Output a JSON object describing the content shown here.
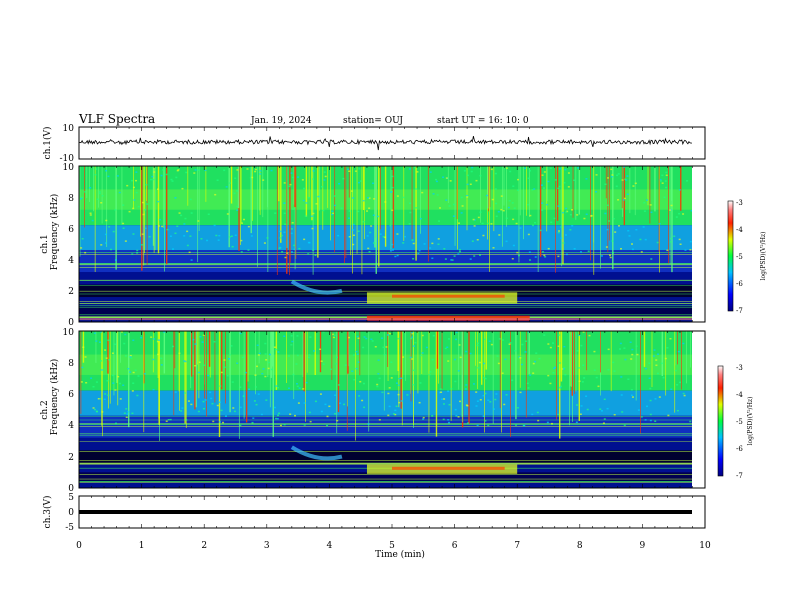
{
  "header": {
    "title": "VLF Spectra",
    "date": "Jan. 19, 2024",
    "station": "station= OUJ",
    "start": "start  UT =  16: 10: 0"
  },
  "chart_data": [
    {
      "type": "line",
      "panel": "ch1-waveform",
      "ylabel": "ch.1(V)",
      "ylim": [
        -10,
        10
      ],
      "yticks": [
        "10",
        "-10"
      ],
      "xlim": [
        0,
        10
      ],
      "series_color": "#000000"
    },
    {
      "type": "heatmap",
      "panel": "ch1-spectrogram",
      "ylabel_channel": "ch.1",
      "ylabel": "Frequency (kHz)",
      "ylim": [
        0,
        10
      ],
      "yticks": [
        "0",
        "2",
        "4",
        "6",
        "8",
        "10"
      ],
      "xlim": [
        0,
        10
      ],
      "colorbar": {
        "label": "log(PSD)(V²/Hz)",
        "ticks": [
          "-3",
          "-4",
          "-5",
          "-6",
          "-7"
        ],
        "range": [
          -7,
          -3
        ]
      }
    },
    {
      "type": "heatmap",
      "panel": "ch2-spectrogram",
      "ylabel_channel": "ch.2",
      "ylabel": "Frequency (kHz)",
      "ylim": [
        0,
        10
      ],
      "yticks": [
        "0",
        "2",
        "4",
        "6",
        "8",
        "10"
      ],
      "xlim": [
        0,
        10
      ],
      "colorbar": {
        "label": "log(PSD)(V²/Hz)",
        "ticks": [
          "-3",
          "-4",
          "-5",
          "-6",
          "-7"
        ],
        "range": [
          -7,
          -3
        ]
      }
    },
    {
      "type": "line",
      "panel": "ch3-waveform",
      "ylabel": "ch.3(V)",
      "ylim": [
        -5,
        5
      ],
      "yticks": [
        "5",
        "0",
        "-5"
      ],
      "xlim": [
        0,
        10
      ],
      "xlabel": "Time (min)",
      "xticks": [
        "0",
        "1",
        "2",
        "3",
        "4",
        "5",
        "6",
        "7",
        "8",
        "9",
        "10"
      ],
      "series_color": "#000000"
    }
  ]
}
